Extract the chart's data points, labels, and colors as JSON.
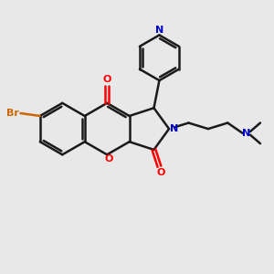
{
  "bg_color": "#e8e8e8",
  "bond_color": "#1a1a1a",
  "o_color": "#ff0000",
  "n_color": "#0000cc",
  "br_color": "#cc6600",
  "lw": 1.8,
  "figsize": [
    3.0,
    3.0
  ],
  "dpi": 100,
  "xlim": [
    0,
    10
  ],
  "ylim": [
    0,
    10
  ]
}
